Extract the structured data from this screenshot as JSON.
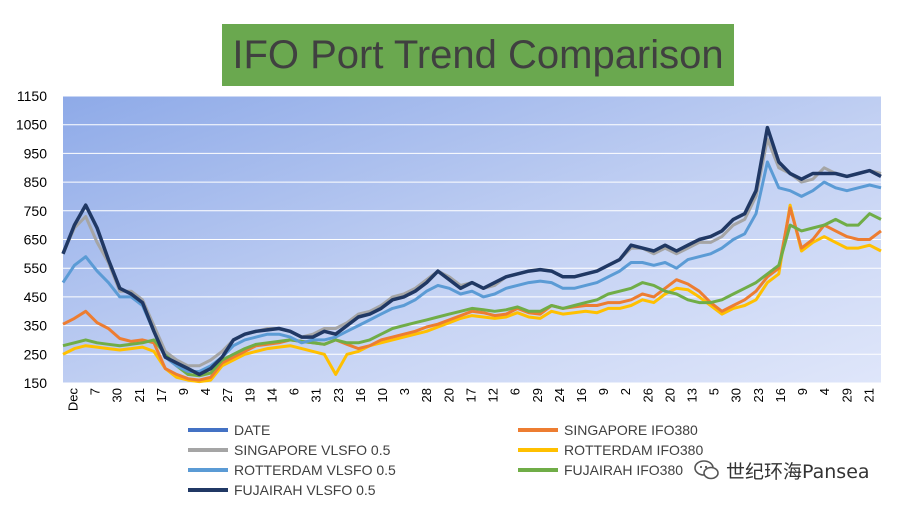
{
  "chart_data": {
    "type": "line",
    "title": "IFO Port Trend Comparison",
    "ylim": [
      150,
      1150
    ],
    "y_ticks": [
      150,
      250,
      350,
      450,
      550,
      650,
      750,
      850,
      950,
      1050,
      1150
    ],
    "x_tick_labels": [
      "Dec",
      "7",
      "30",
      "21",
      "17",
      "9",
      "4",
      "27",
      "19",
      "14",
      "6",
      "31",
      "23",
      "16",
      "10",
      "3",
      "28",
      "20",
      "17",
      "12",
      "6",
      "29",
      "24",
      "16",
      "9",
      "2",
      "26",
      "20",
      "13",
      "5",
      "30",
      "23",
      "16",
      "9",
      "4",
      "29",
      "21"
    ],
    "x_points": [
      0,
      2,
      4,
      6,
      8,
      10,
      12,
      14,
      16,
      18,
      20,
      22,
      24,
      26,
      28,
      30,
      32,
      34,
      36,
      38,
      40,
      42,
      44,
      46,
      48,
      50,
      52,
      54,
      56,
      58,
      60,
      62,
      64,
      66,
      68,
      70,
      72,
      74,
      76,
      78,
      80,
      82,
      84,
      86,
      88,
      90,
      92,
      94,
      96,
      98,
      100,
      102,
      104,
      106,
      108,
      110,
      112,
      114,
      116,
      118,
      120,
      122,
      124,
      126,
      128,
      130,
      132,
      134,
      136,
      138,
      140,
      142,
      144
    ],
    "grid": true,
    "legend_position": "bottom",
    "series": [
      {
        "name": "DATE",
        "color": "#4472c4",
        "values": []
      },
      {
        "name": "SINGAPORE IFO380",
        "color": "#ed7d31",
        "values": [
          355,
          375,
          400,
          360,
          340,
          305,
          295,
          300,
          290,
          200,
          180,
          165,
          160,
          170,
          220,
          240,
          260,
          280,
          285,
          290,
          300,
          295,
          290,
          285,
          300,
          285,
          270,
          280,
          300,
          310,
          320,
          330,
          345,
          355,
          370,
          385,
          400,
          395,
          385,
          390,
          410,
          395,
          390,
          420,
          410,
          415,
          420,
          420,
          430,
          430,
          440,
          460,
          450,
          480,
          510,
          495,
          470,
          430,
          400,
          420,
          440,
          470,
          520,
          550,
          760,
          620,
          650,
          700,
          680,
          660,
          650,
          650,
          680
        ]
      },
      {
        "name": "SINGAPORE VLSFO 0.5",
        "color": "#a5a5a5",
        "values": [
          600,
          690,
          730,
          640,
          570,
          470,
          470,
          440,
          350,
          260,
          230,
          210,
          210,
          230,
          260,
          300,
          320,
          330,
          340,
          340,
          330,
          310,
          320,
          340,
          340,
          360,
          390,
          400,
          420,
          450,
          460,
          480,
          510,
          540,
          520,
          490,
          500,
          480,
          490,
          520,
          530,
          540,
          545,
          540,
          520,
          520,
          530,
          540,
          560,
          580,
          620,
          620,
          600,
          620,
          600,
          620,
          640,
          640,
          660,
          700,
          720,
          800,
          1000,
          900,
          880,
          850,
          860,
          900,
          880,
          870,
          880,
          890,
          880
        ]
      },
      {
        "name": "ROTTERDAM IFO380",
        "color": "#ffc000",
        "values": [
          250,
          270,
          280,
          275,
          270,
          265,
          270,
          275,
          260,
          200,
          170,
          160,
          155,
          160,
          210,
          230,
          250,
          260,
          270,
          275,
          280,
          270,
          260,
          250,
          180,
          250,
          260,
          280,
          290,
          300,
          310,
          320,
          330,
          345,
          360,
          375,
          385,
          380,
          375,
          380,
          395,
          380,
          375,
          400,
          390,
          395,
          400,
          395,
          410,
          410,
          420,
          440,
          430,
          460,
          480,
          475,
          450,
          420,
          390,
          410,
          420,
          440,
          500,
          530,
          770,
          610,
          640,
          660,
          640,
          620,
          620,
          630,
          610
        ]
      },
      {
        "name": "ROTTERDAM VLSFO 0.5",
        "color": "#5b9bd5",
        "values": [
          500,
          560,
          590,
          540,
          500,
          450,
          450,
          420,
          330,
          240,
          210,
          190,
          190,
          210,
          240,
          280,
          300,
          310,
          320,
          320,
          310,
          290,
          300,
          300,
          310,
          330,
          350,
          370,
          390,
          410,
          420,
          440,
          470,
          490,
          480,
          460,
          470,
          450,
          460,
          480,
          490,
          500,
          505,
          500,
          480,
          480,
          490,
          500,
          520,
          540,
          570,
          570,
          560,
          570,
          550,
          580,
          590,
          600,
          620,
          650,
          670,
          740,
          920,
          830,
          820,
          800,
          820,
          850,
          830,
          820,
          830,
          840,
          830
        ]
      },
      {
        "name": "FUJAIRAH IFO380",
        "color": "#70ad47",
        "values": [
          280,
          290,
          300,
          290,
          285,
          280,
          285,
          290,
          300,
          250,
          210,
          180,
          175,
          185,
          230,
          250,
          270,
          285,
          290,
          295,
          300,
          295,
          290,
          285,
          300,
          290,
          290,
          300,
          320,
          340,
          350,
          360,
          370,
          380,
          390,
          400,
          410,
          405,
          400,
          405,
          415,
          400,
          400,
          420,
          410,
          420,
          430,
          440,
          460,
          470,
          480,
          500,
          490,
          470,
          460,
          440,
          430,
          430,
          440,
          460,
          480,
          500,
          530,
          560,
          700,
          680,
          690,
          700,
          720,
          700,
          700,
          740,
          720
        ]
      },
      {
        "name": "FUJAIRAH VLSFO 0.5",
        "color": "#203864",
        "values": [
          600,
          700,
          770,
          690,
          580,
          480,
          460,
          430,
          330,
          240,
          220,
          200,
          180,
          200,
          240,
          300,
          320,
          330,
          335,
          340,
          330,
          310,
          310,
          330,
          320,
          350,
          380,
          390,
          410,
          440,
          450,
          470,
          500,
          540,
          510,
          480,
          500,
          480,
          500,
          520,
          530,
          540,
          545,
          540,
          520,
          520,
          530,
          540,
          560,
          580,
          630,
          620,
          610,
          630,
          610,
          630,
          650,
          660,
          680,
          720,
          740,
          820,
          1040,
          920,
          880,
          860,
          880,
          880,
          880,
          870,
          880,
          890,
          870
        ]
      }
    ]
  },
  "watermark": {
    "text": "世纪环海Pansea",
    "icon": "wechat-icon"
  }
}
